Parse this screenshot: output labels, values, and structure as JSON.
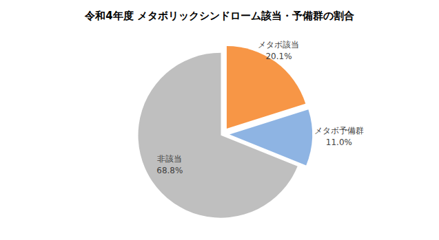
{
  "chart_data": {
    "type": "pie",
    "title": "令和4年度 メタボリックシンドローム該当・予備群の割合",
    "categories": [
      "メタボ該当",
      "メタボ予備群",
      "非該当"
    ],
    "values": [
      20.1,
      11.0,
      68.8
    ],
    "value_labels": [
      "20.1%",
      "11.0%",
      "68.8%"
    ],
    "colors": [
      "#f79646",
      "#8eb4e3",
      "#bfbfbf"
    ],
    "data_labels": true
  }
}
